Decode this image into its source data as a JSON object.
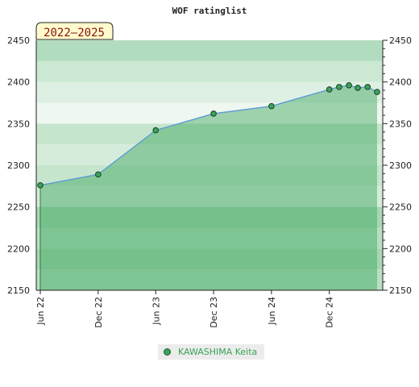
{
  "chart_data": {
    "type": "area",
    "title": "WOF ratinglist",
    "period_label": "2022–2025",
    "x_ticks": [
      "Jun 22",
      "Dec 22",
      "Jun 23",
      "Dec 23",
      "Jun 24",
      "Dec 24"
    ],
    "y_ticks": [
      2150,
      2200,
      2250,
      2300,
      2350,
      2400,
      2450
    ],
    "ylim": [
      2150,
      2450
    ],
    "grid": "horizontal bands",
    "legend_position": "bottom-center",
    "series": [
      {
        "name": "KAWASHIMA Keita",
        "color": "#3aa35a",
        "line_color": "#5b9bd5",
        "x": [
          "2022-06",
          "2022-12",
          "2023-06",
          "2023-12",
          "2024-06",
          "2024-12",
          "2025-01",
          "2025-02",
          "2025-03",
          "2025-04",
          "2025-05"
        ],
        "y": [
          2276,
          2289,
          2342,
          2362,
          2371,
          2391,
          2394,
          2396,
          2393,
          2394,
          2388
        ]
      }
    ]
  }
}
